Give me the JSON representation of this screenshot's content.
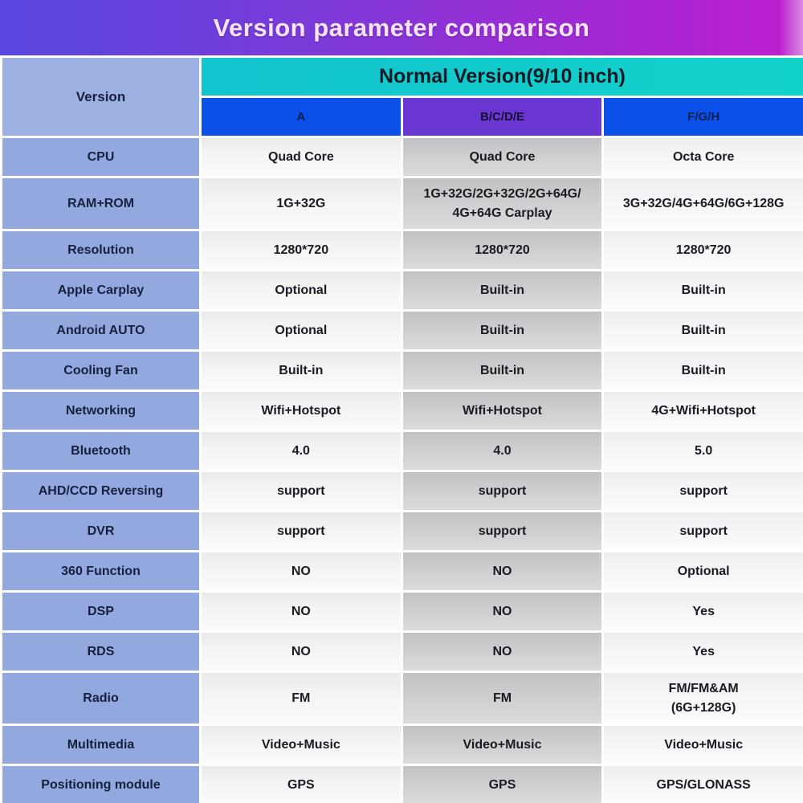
{
  "banner": {
    "title": "Version parameter comparison"
  },
  "header": {
    "version_label": "Version",
    "group_label": "Normal Version(9/10 inch)",
    "columns": [
      "A",
      "B/C/D/E",
      "F/G/H"
    ]
  },
  "table": {
    "rows": [
      {
        "label": "CPU",
        "values": [
          "Quad Core",
          "Quad Core",
          "Octa Core"
        ],
        "tall": false
      },
      {
        "label": "RAM+ROM",
        "values": [
          "1G+32G",
          "1G+32G/2G+32G/2G+64G/\n4G+64G  Carplay",
          "3G+32G/4G+64G/6G+128G"
        ],
        "tall": true
      },
      {
        "label": "Resolution",
        "values": [
          "1280*720",
          "1280*720",
          "1280*720"
        ],
        "tall": false
      },
      {
        "label": "Apple Carplay",
        "values": [
          "Optional",
          "Built-in",
          "Built-in"
        ],
        "tall": false
      },
      {
        "label": "Android AUTO",
        "values": [
          "Optional",
          "Built-in",
          "Built-in"
        ],
        "tall": false
      },
      {
        "label": "Cooling Fan",
        "values": [
          "Built-in",
          "Built-in",
          "Built-in"
        ],
        "tall": false
      },
      {
        "label": "Networking",
        "values": [
          "Wifi+Hotspot",
          "Wifi+Hotspot",
          "4G+Wifi+Hotspot"
        ],
        "tall": false
      },
      {
        "label": "Bluetooth",
        "values": [
          "4.0",
          "4.0",
          "5.0"
        ],
        "tall": false
      },
      {
        "label": "AHD/CCD Reversing",
        "values": [
          "support",
          "support",
          "support"
        ],
        "tall": false
      },
      {
        "label": "DVR",
        "values": [
          "support",
          "support",
          "support"
        ],
        "tall": false
      },
      {
        "label": "360 Function",
        "values": [
          "NO",
          "NO",
          "Optional"
        ],
        "tall": false
      },
      {
        "label": "DSP",
        "values": [
          "NO",
          "NO",
          "Yes"
        ],
        "tall": false
      },
      {
        "label": "RDS",
        "values": [
          "NO",
          "NO",
          "Yes"
        ],
        "tall": false
      },
      {
        "label": "Radio",
        "values": [
          "FM",
          "FM",
          "FM/FM&AM\n(6G+128G)"
        ],
        "tall": true
      },
      {
        "label": "Multimedia",
        "values": [
          "Video+Music",
          "Video+Music",
          "Video+Music"
        ],
        "tall": false
      },
      {
        "label": "Positioning module",
        "values": [
          "GPS",
          "GPS",
          "GPS/GLONASS"
        ],
        "tall": false
      }
    ]
  },
  "colors": {
    "banner_gradient_from": "#5847df",
    "banner_gradient_to": "#bb1fd0",
    "title_text": "#f7e5f5",
    "group_header_bg": "#12cccd",
    "column_header_blue": "#0b50e8",
    "column_header_purple": "#6936d1",
    "label_column_bg": "#93a8df",
    "column_b_bg": "#cfcfd1"
  }
}
